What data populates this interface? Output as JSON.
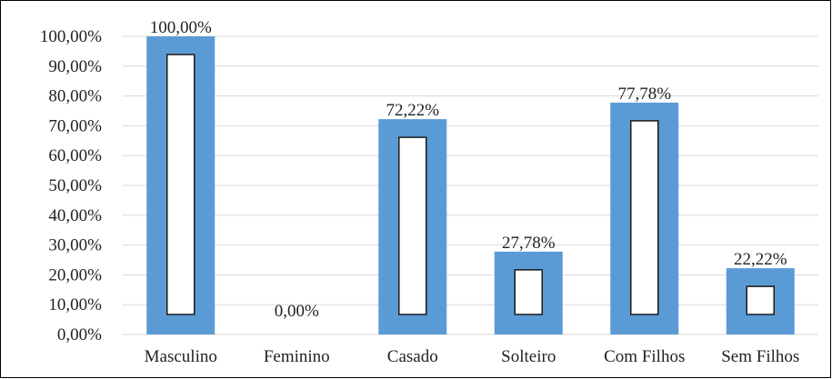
{
  "chart_data": {
    "type": "bar",
    "categories": [
      "Masculino",
      "Feminino",
      "Casado",
      "Solteiro",
      "Com Filhos",
      "Sem Filhos"
    ],
    "values": [
      100,
      0,
      72.22,
      27.78,
      77.78,
      22.22
    ],
    "value_labels": [
      "100,00%",
      "0,00%",
      "72,22%",
      "27,78%",
      "77,78%",
      "22,22%"
    ],
    "color": "#5b9bd5",
    "ylim": [
      0,
      100
    ],
    "yticks": [
      {
        "value": 0,
        "label": "0,00%"
      },
      {
        "value": 10,
        "label": "10,00%"
      },
      {
        "value": 20,
        "label": "20,00%"
      },
      {
        "value": 30,
        "label": "30,00%"
      },
      {
        "value": 40,
        "label": "40,00%"
      },
      {
        "value": 50,
        "label": "50,00%"
      },
      {
        "value": 60,
        "label": "60,00%"
      },
      {
        "value": 70,
        "label": "70,00%"
      },
      {
        "value": 80,
        "label": "80,00%"
      },
      {
        "value": 90,
        "label": "90,00%"
      },
      {
        "value": 100,
        "label": "100,00%"
      }
    ],
    "grid": true
  }
}
